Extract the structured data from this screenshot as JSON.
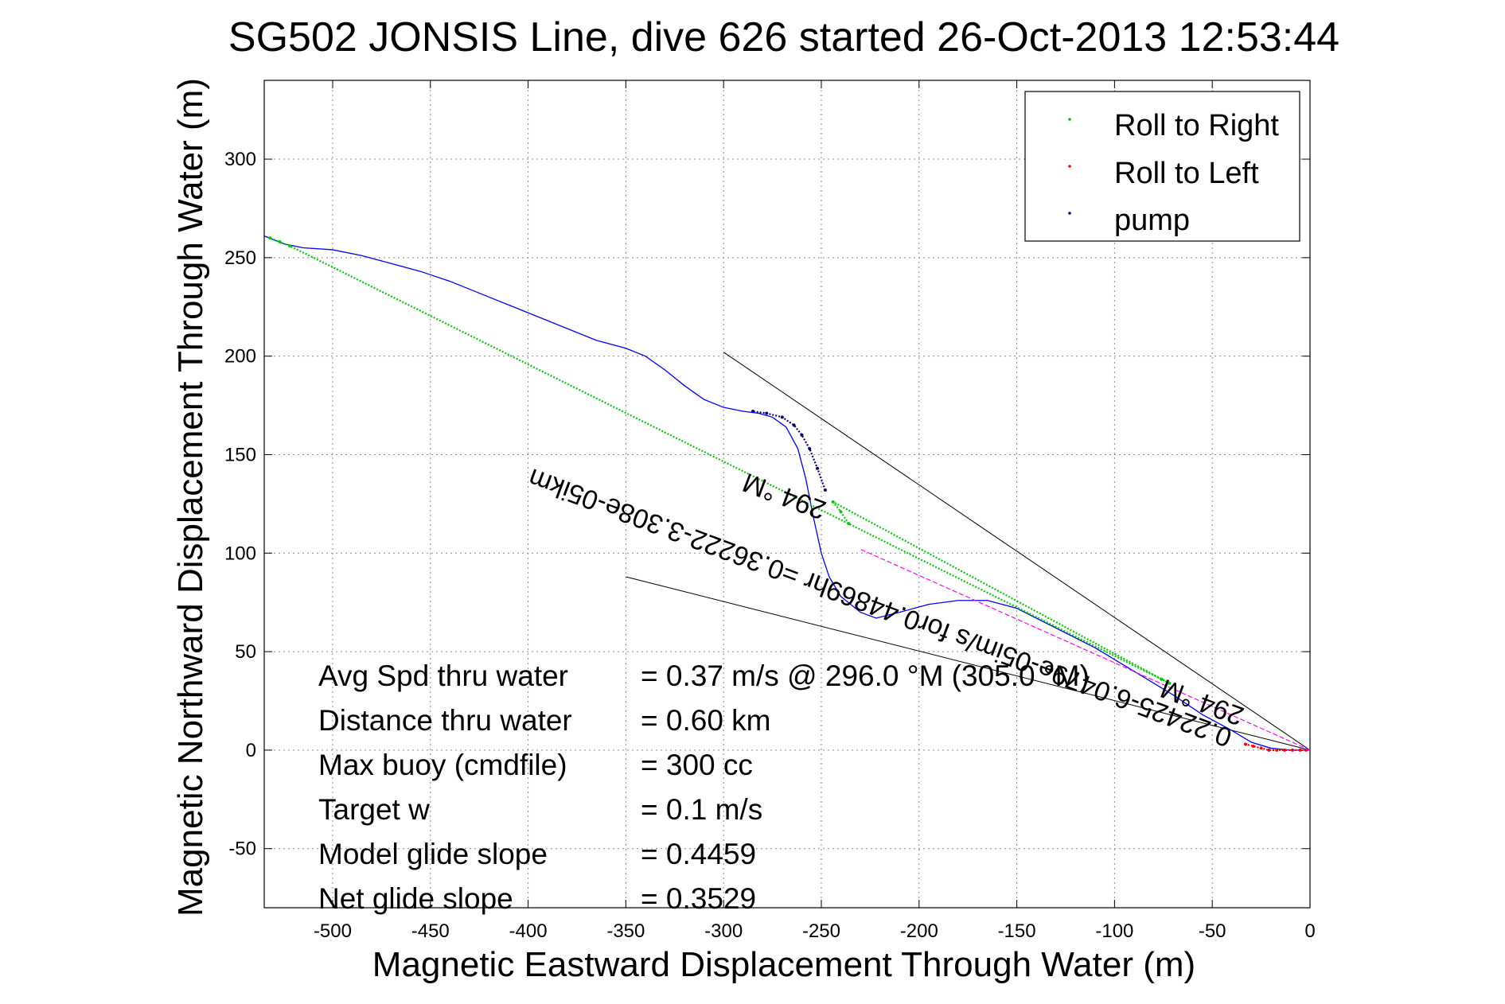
{
  "chart_data": {
    "type": "line",
    "title": "SG502 JONSIS Line, dive 626 started 26-Oct-2013 12:53:44",
    "xlabel": "Magnetic Eastward Displacement Through Water (m)",
    "ylabel": "Magnetic Northward Displacement Through Water (m)",
    "xlim": [
      -535,
      0
    ],
    "ylim": [
      -80,
      340
    ],
    "grid": true,
    "xticks": [
      -500,
      -450,
      -400,
      -350,
      -300,
      -250,
      -200,
      -150,
      -100,
      -50,
      0
    ],
    "yticks": [
      -50,
      0,
      50,
      100,
      150,
      200,
      250,
      300
    ],
    "legend": {
      "position": "top-right",
      "entries": [
        {
          "label": "Roll to Right",
          "color": "#00cc00"
        },
        {
          "label": "Roll to Left",
          "color": "#ff0000"
        },
        {
          "label": "pump",
          "color": "#000080"
        }
      ]
    },
    "series": [
      {
        "name": "track",
        "color": "#0000ff",
        "x": [
          0,
          -10,
          -20,
          -30,
          -40,
          -55,
          -70,
          -90,
          -110,
          -130,
          -150,
          -165,
          -180,
          -195,
          -210,
          -222,
          -230,
          -240,
          -246,
          -250,
          -254,
          -258,
          -262,
          -268,
          -275,
          -282,
          -290,
          -300,
          -310,
          -320,
          -330,
          -340,
          -350,
          -365,
          -380,
          -395,
          -410,
          -425,
          -440,
          -455,
          -470,
          -485,
          -500,
          -515,
          -525,
          -535
        ],
        "y": [
          0,
          0,
          1,
          4,
          10,
          18,
          28,
          40,
          52,
          62,
          72,
          76,
          76,
          74,
          70,
          67,
          70,
          78,
          88,
          100,
          118,
          138,
          153,
          164,
          169,
          171,
          172,
          174,
          178,
          185,
          193,
          200,
          204,
          208,
          214,
          220,
          226,
          232,
          238,
          243,
          247,
          251,
          254,
          255,
          257,
          261
        ]
      },
      {
        "name": "pump",
        "color": "#000080",
        "x": [
          -248,
          -252,
          -256,
          -260,
          -264,
          -270,
          -278,
          -285
        ],
        "y": [
          132,
          143,
          153,
          160,
          165,
          169,
          171,
          172
        ]
      },
      {
        "name": "Roll to Right",
        "color": "#00cc00",
        "x": [
          -236,
          -240,
          -244,
          -72,
          -76,
          -522,
          -527,
          -532
        ],
        "y": [
          115,
          121,
          126,
          34,
          36,
          256,
          258,
          260
        ]
      },
      {
        "name": "Roll to Left",
        "color": "#ff0000",
        "x": [
          -2,
          -5,
          -9,
          -13,
          -17,
          -21,
          -25,
          -29,
          -33
        ],
        "y": [
          0,
          0,
          0,
          0,
          0,
          0,
          1,
          2,
          3
        ]
      },
      {
        "name": "heading 294 line",
        "color": "#ff00ff",
        "x": [
          0,
          -230
        ],
        "y": [
          0,
          102
        ]
      }
    ],
    "reference_lines": [
      {
        "color": "#000000",
        "x": [
          0,
          -300
        ],
        "y": [
          0,
          202
        ]
      },
      {
        "color": "#000000",
        "x": [
          0,
          -350
        ],
        "y": [
          0,
          88
        ]
      }
    ],
    "annotations": {
      "current_text": "0.22425-6.0479e-05im/s for0.44869hr =0.36222-3.308e-05ikm",
      "heading_label_a": "294 °M",
      "heading_label_b": "294 °M",
      "overlay_fragment": "(305.0 °M)"
    }
  },
  "stats": [
    {
      "label": "Avg Spd thru water",
      "value": "=  0.37 m/s @ 296.0 °M (305.0 °M)"
    },
    {
      "label": "Distance thru water",
      "value": "=  0.60 km"
    },
    {
      "label": "Max buoy (cmdfile)",
      "value": "= 300 cc"
    },
    {
      "label": "Target w",
      "value": "= 0.1 m/s"
    },
    {
      "label": "Model glide slope",
      "value": "= 0.4459"
    },
    {
      "label": "Net glide slope",
      "value": "= 0.3529"
    }
  ]
}
